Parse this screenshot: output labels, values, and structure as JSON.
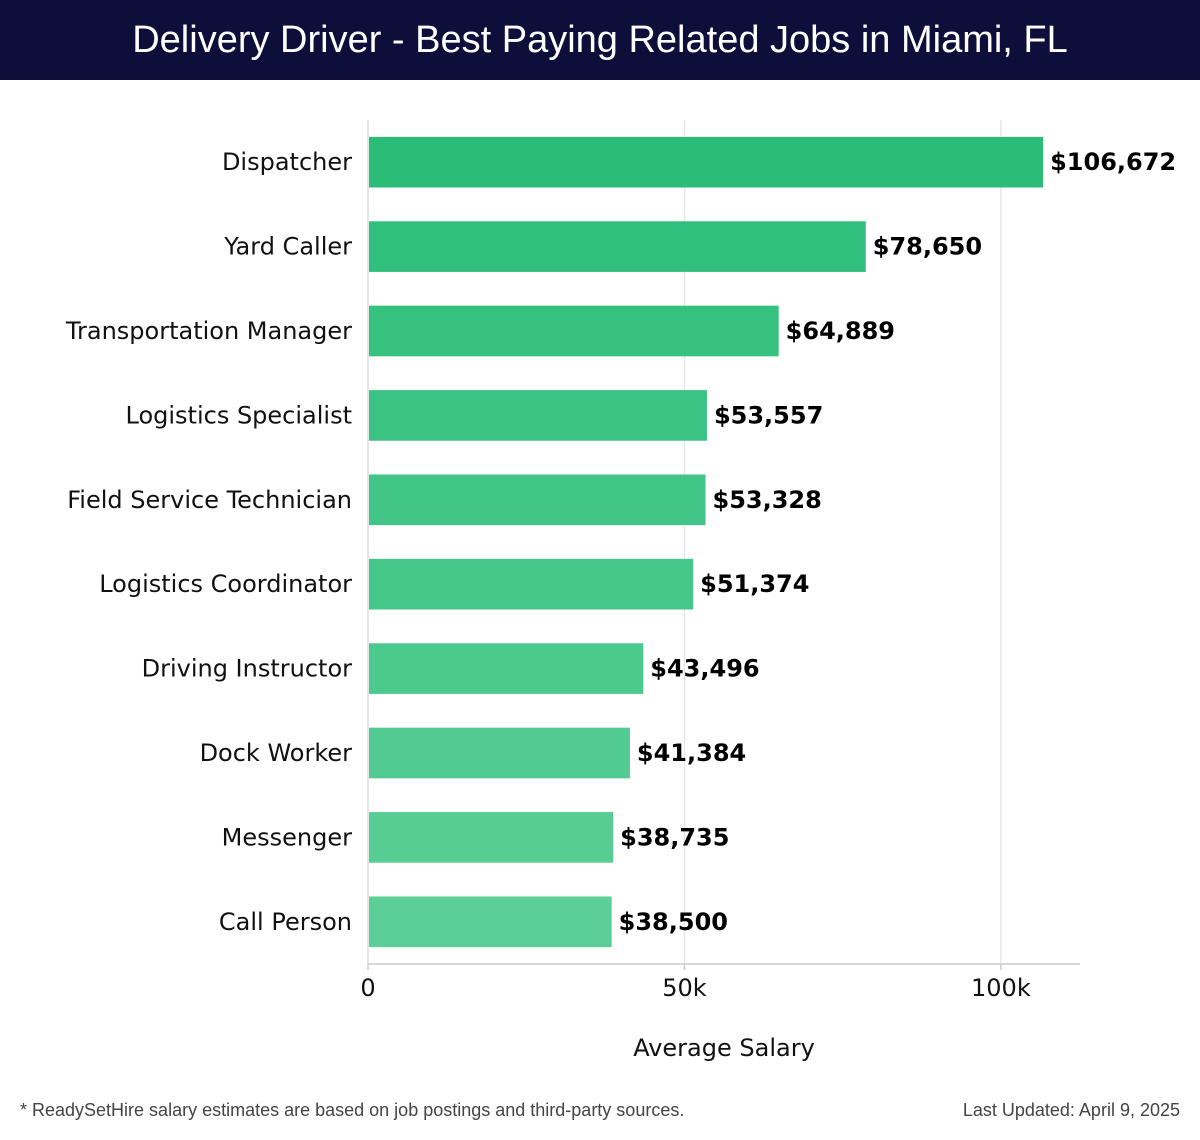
{
  "header": {
    "title": "Delivery Driver - Best Paying Related Jobs in Miami, FL"
  },
  "footer": {
    "note": "* ReadySetHire salary estimates are based on job postings and third-party sources.",
    "updated": "Last Updated: April 9, 2025"
  },
  "chart_data": {
    "type": "bar",
    "orientation": "horizontal",
    "categories": [
      "Dispatcher",
      "Yard Caller",
      "Transportation Manager",
      "Logistics Specialist",
      "Field Service Technician",
      "Logistics Coordinator",
      "Driving Instructor",
      "Dock Worker",
      "Messenger",
      "Call Person"
    ],
    "values": [
      106672,
      78650,
      64889,
      53557,
      53328,
      51374,
      43496,
      41384,
      38735,
      38500
    ],
    "value_labels": [
      "$106,672",
      "$78,650",
      "$64,889",
      "$53,557",
      "$53,328",
      "$51,374",
      "$43,496",
      "$41,384",
      "$38,735",
      "$38,500"
    ],
    "xlabel": "Average Salary",
    "ylabel": "",
    "xlim": [
      0,
      112500
    ],
    "xticks": [
      0,
      50000,
      100000
    ],
    "xtick_labels": [
      "0",
      "50k",
      "100k"
    ],
    "grid": true,
    "colors": {
      "top": "#2bbd78",
      "bottom": "#5ccf98"
    }
  }
}
